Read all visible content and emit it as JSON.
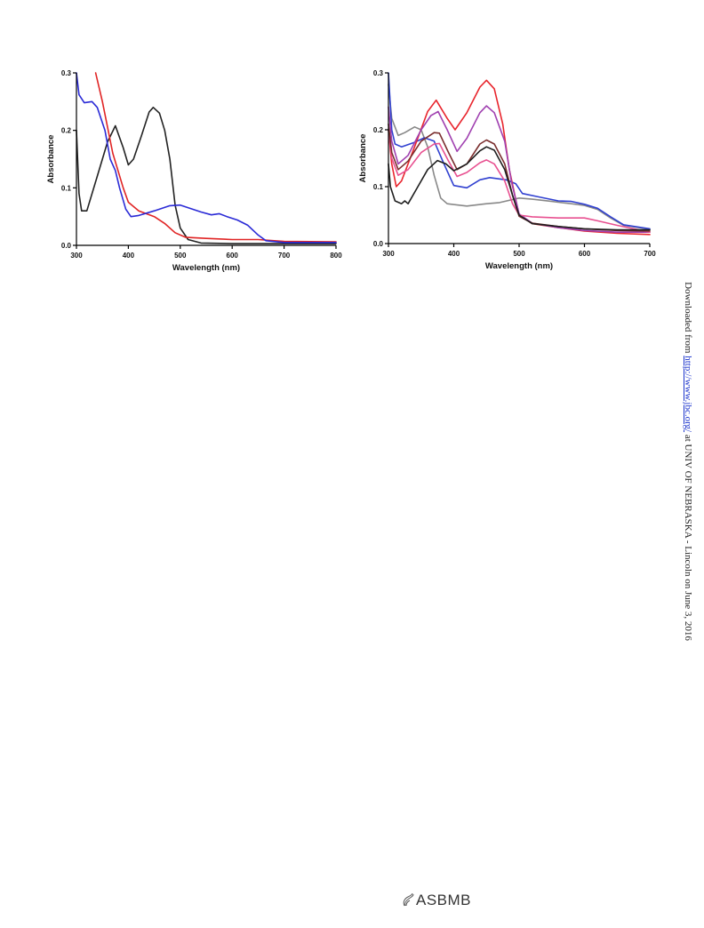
{
  "side_note": {
    "prefix": "Downloaded from ",
    "link_text": "http://www.jbc.org/",
    "suffix": " at UNIV OF NEBRASKA - Lincoln on June 3, 2016"
  },
  "logo_text": "ASBMB",
  "chart_data": [
    {
      "type": "line",
      "xlabel": "Wavelength (nm)",
      "ylabel": "Absorbance",
      "xlim": [
        300,
        800
      ],
      "ylim": [
        0,
        0.3
      ],
      "xticks": [
        "300",
        "400",
        "500",
        "600",
        "700",
        "800"
      ],
      "yticks": [
        "0.0",
        "0.1",
        "0.2",
        "0.3"
      ],
      "grid": false,
      "series": [
        {
          "color": "#222222",
          "points": [
            [
              300,
              0.2
            ],
            [
              305,
              0.09
            ],
            [
              310,
              0.06
            ],
            [
              320,
              0.06
            ],
            [
              340,
              0.12
            ],
            [
              360,
              0.18
            ],
            [
              375,
              0.208
            ],
            [
              390,
              0.17
            ],
            [
              400,
              0.14
            ],
            [
              410,
              0.15
            ],
            [
              425,
              0.19
            ],
            [
              440,
              0.232
            ],
            [
              448,
              0.24
            ],
            [
              460,
              0.23
            ],
            [
              470,
              0.2
            ],
            [
              480,
              0.15
            ],
            [
              490,
              0.07
            ],
            [
              500,
              0.03
            ],
            [
              515,
              0.01
            ],
            [
              540,
              0.004
            ],
            [
              600,
              0.003
            ],
            [
              700,
              0.003
            ],
            [
              800,
              0.003
            ]
          ]
        },
        {
          "color": "#e02424",
          "points": [
            [
              337,
              0.3
            ],
            [
              350,
              0.25
            ],
            [
              370,
              0.16
            ],
            [
              390,
              0.1
            ],
            [
              400,
              0.075
            ],
            [
              420,
              0.06
            ],
            [
              450,
              0.05
            ],
            [
              470,
              0.038
            ],
            [
              490,
              0.022
            ],
            [
              510,
              0.014
            ],
            [
              550,
              0.012
            ],
            [
              600,
              0.01
            ],
            [
              650,
              0.01
            ],
            [
              700,
              0.007
            ],
            [
              800,
              0.006
            ]
          ]
        },
        {
          "color": "#2a2ad6",
          "points": [
            [
              300,
              0.3
            ],
            [
              305,
              0.262
            ],
            [
              315,
              0.248
            ],
            [
              330,
              0.25
            ],
            [
              340,
              0.24
            ],
            [
              355,
              0.2
            ],
            [
              365,
              0.15
            ],
            [
              375,
              0.13
            ],
            [
              383,
              0.1
            ],
            [
              395,
              0.063
            ],
            [
              405,
              0.05
            ],
            [
              420,
              0.052
            ],
            [
              450,
              0.06
            ],
            [
              480,
              0.069
            ],
            [
              500,
              0.07
            ],
            [
              520,
              0.064
            ],
            [
              540,
              0.058
            ],
            [
              560,
              0.053
            ],
            [
              575,
              0.055
            ],
            [
              590,
              0.05
            ],
            [
              610,
              0.044
            ],
            [
              630,
              0.035
            ],
            [
              650,
              0.018
            ],
            [
              665,
              0.008
            ],
            [
              700,
              0.005
            ],
            [
              800,
              0.005
            ]
          ]
        }
      ]
    },
    {
      "type": "line",
      "xlabel": "Wavelength (nm)",
      "ylabel": "Absorbance",
      "xlim": [
        300,
        700
      ],
      "ylim": [
        0,
        0.3
      ],
      "xticks": [
        "300",
        "400",
        "500",
        "600",
        "700"
      ],
      "yticks": [
        "0.0",
        "0.1",
        "0.2",
        "0.3"
      ],
      "grid": false,
      "series": [
        {
          "color": "#888888",
          "points": [
            [
              300,
              0.28
            ],
            [
              305,
              0.22
            ],
            [
              315,
              0.19
            ],
            [
              325,
              0.195
            ],
            [
              340,
              0.205
            ],
            [
              350,
              0.2
            ],
            [
              360,
              0.17
            ],
            [
              370,
              0.12
            ],
            [
              380,
              0.08
            ],
            [
              390,
              0.07
            ],
            [
              420,
              0.066
            ],
            [
              450,
              0.07
            ],
            [
              470,
              0.072
            ],
            [
              500,
              0.08
            ],
            [
              520,
              0.078
            ],
            [
              550,
              0.074
            ],
            [
              580,
              0.07
            ],
            [
              600,
              0.067
            ],
            [
              620,
              0.06
            ],
            [
              640,
              0.045
            ],
            [
              660,
              0.032
            ],
            [
              700,
              0.025
            ]
          ]
        },
        {
          "color": "#3040d0",
          "points": [
            [
              300,
              0.3
            ],
            [
              305,
              0.2
            ],
            [
              310,
              0.175
            ],
            [
              320,
              0.17
            ],
            [
              340,
              0.178
            ],
            [
              355,
              0.186
            ],
            [
              370,
              0.18
            ],
            [
              385,
              0.14
            ],
            [
              400,
              0.102
            ],
            [
              420,
              0.098
            ],
            [
              440,
              0.112
            ],
            [
              455,
              0.116
            ],
            [
              480,
              0.112
            ],
            [
              495,
              0.105
            ],
            [
              505,
              0.088
            ],
            [
              530,
              0.082
            ],
            [
              560,
              0.075
            ],
            [
              580,
              0.074
            ],
            [
              600,
              0.069
            ],
            [
              620,
              0.062
            ],
            [
              640,
              0.047
            ],
            [
              660,
              0.033
            ],
            [
              700,
              0.026
            ]
          ]
        },
        {
          "color": "#e8242c",
          "points": [
            [
              300,
              0.2
            ],
            [
              305,
              0.14
            ],
            [
              312,
              0.1
            ],
            [
              320,
              0.11
            ],
            [
              340,
              0.17
            ],
            [
              360,
              0.232
            ],
            [
              373,
              0.252
            ],
            [
              390,
              0.22
            ],
            [
              402,
              0.2
            ],
            [
              420,
              0.23
            ],
            [
              440,
              0.275
            ],
            [
              450,
              0.287
            ],
            [
              462,
              0.272
            ],
            [
              475,
              0.21
            ],
            [
              485,
              0.13
            ],
            [
              500,
              0.05
            ],
            [
              520,
              0.035
            ],
            [
              560,
              0.028
            ],
            [
              600,
              0.022
            ],
            [
              650,
              0.018
            ],
            [
              700,
              0.016
            ]
          ]
        },
        {
          "color": "#a040b0",
          "points": [
            [
              300,
              0.24
            ],
            [
              305,
              0.18
            ],
            [
              315,
              0.14
            ],
            [
              330,
              0.155
            ],
            [
              350,
              0.2
            ],
            [
              365,
              0.225
            ],
            [
              376,
              0.232
            ],
            [
              390,
              0.2
            ],
            [
              405,
              0.162
            ],
            [
              420,
              0.185
            ],
            [
              440,
              0.23
            ],
            [
              450,
              0.242
            ],
            [
              462,
              0.23
            ],
            [
              478,
              0.18
            ],
            [
              488,
              0.11
            ],
            [
              500,
              0.052
            ],
            [
              520,
              0.036
            ],
            [
              560,
              0.028
            ],
            [
              600,
              0.023
            ],
            [
              650,
              0.02
            ],
            [
              700,
              0.02
            ]
          ]
        },
        {
          "color": "#e85090",
          "points": [
            [
              300,
              0.2
            ],
            [
              305,
              0.15
            ],
            [
              315,
              0.12
            ],
            [
              330,
              0.13
            ],
            [
              350,
              0.16
            ],
            [
              370,
              0.175
            ],
            [
              378,
              0.176
            ],
            [
              392,
              0.145
            ],
            [
              405,
              0.118
            ],
            [
              420,
              0.125
            ],
            [
              440,
              0.142
            ],
            [
              450,
              0.147
            ],
            [
              462,
              0.14
            ],
            [
              478,
              0.11
            ],
            [
              490,
              0.07
            ],
            [
              500,
              0.05
            ],
            [
              520,
              0.047
            ],
            [
              560,
              0.045
            ],
            [
              600,
              0.045
            ],
            [
              620,
              0.04
            ],
            [
              650,
              0.032
            ],
            [
              700,
              0.02
            ]
          ]
        },
        {
          "color": "#7a2e2e",
          "points": [
            [
              300,
              0.21
            ],
            [
              305,
              0.16
            ],
            [
              315,
              0.13
            ],
            [
              330,
              0.145
            ],
            [
              350,
              0.18
            ],
            [
              370,
              0.195
            ],
            [
              378,
              0.194
            ],
            [
              392,
              0.16
            ],
            [
              405,
              0.13
            ],
            [
              420,
              0.14
            ],
            [
              440,
              0.175
            ],
            [
              450,
              0.182
            ],
            [
              462,
              0.175
            ],
            [
              478,
              0.14
            ],
            [
              490,
              0.085
            ],
            [
              500,
              0.048
            ],
            [
              520,
              0.036
            ],
            [
              560,
              0.03
            ],
            [
              600,
              0.026
            ],
            [
              650,
              0.023
            ],
            [
              700,
              0.022
            ]
          ]
        },
        {
          "color": "#1e1e1e",
          "points": [
            [
              300,
              0.14
            ],
            [
              303,
              0.1
            ],
            [
              310,
              0.075
            ],
            [
              320,
              0.07
            ],
            [
              325,
              0.075
            ],
            [
              330,
              0.07
            ],
            [
              345,
              0.1
            ],
            [
              360,
              0.13
            ],
            [
              375,
              0.146
            ],
            [
              388,
              0.14
            ],
            [
              400,
              0.128
            ],
            [
              420,
              0.14
            ],
            [
              440,
              0.163
            ],
            [
              450,
              0.17
            ],
            [
              462,
              0.164
            ],
            [
              478,
              0.13
            ],
            [
              490,
              0.085
            ],
            [
              500,
              0.05
            ],
            [
              520,
              0.035
            ],
            [
              560,
              0.03
            ],
            [
              600,
              0.026
            ],
            [
              650,
              0.024
            ],
            [
              700,
              0.024
            ]
          ]
        }
      ]
    }
  ]
}
